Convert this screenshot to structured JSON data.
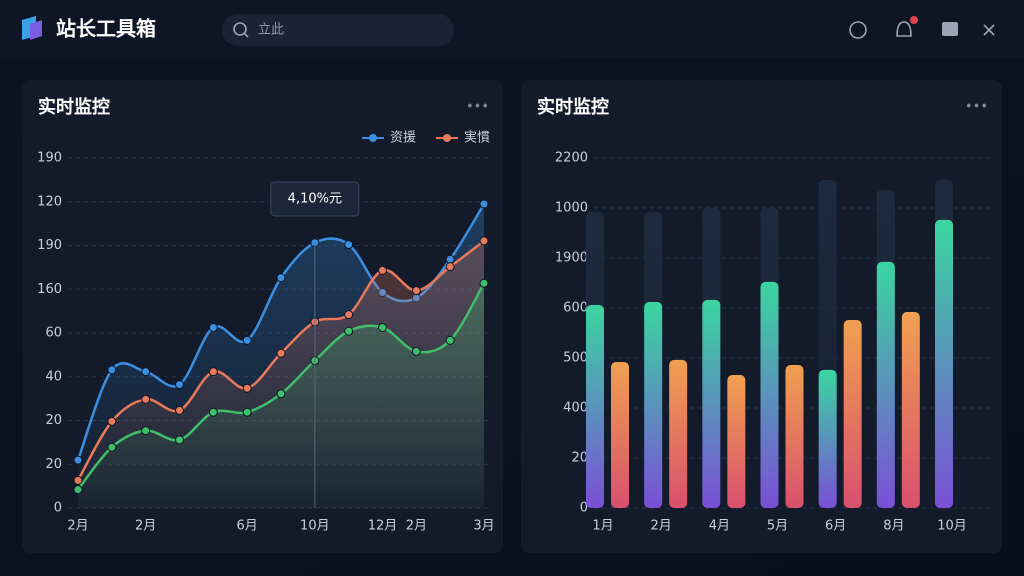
{
  "header": {
    "title": "站长工具箱",
    "search_placeholder": "立此"
  },
  "chart_data": [
    {
      "type": "line",
      "title": "实时监控",
      "categories": [
        "2月",
        null,
        "2月",
        null,
        null,
        "6月",
        null,
        "10月",
        null,
        "12月",
        "2月",
        null,
        "3月"
      ],
      "ylim": [
        0,
        190
      ],
      "y_axis_labels": [
        "0",
        "20",
        "20",
        "40",
        "60",
        "160",
        "190",
        "120",
        "190"
      ],
      "grid": true,
      "legend": "top-right",
      "annotation": "4,10%元",
      "annotation_index": 7,
      "series": [
        {
          "name": "资援",
          "color": "#3b8fe0",
          "values": [
            26,
            75,
            74,
            67,
            98,
            91,
            125,
            144,
            143,
            117,
            114,
            135,
            165
          ]
        },
        {
          "name": "実慣",
          "color": "#e8795a",
          "values": [
            15,
            47,
            59,
            53,
            74,
            65,
            84,
            101,
            105,
            129,
            118,
            131,
            145
          ]
        },
        {
          "color": "#3fbf6a",
          "values": [
            10,
            33,
            42,
            37,
            52,
            52,
            62,
            80,
            96,
            98,
            85,
            91,
            122
          ]
        }
      ]
    },
    {
      "type": "bar",
      "title": "实时监控",
      "categories": [
        "1月",
        "2月",
        "4月",
        "5月",
        "6月",
        "8月",
        "10月"
      ],
      "ylim": [
        0,
        2200
      ],
      "y_axis_labels": [
        "0",
        "20",
        "400",
        "500",
        "600",
        "1900",
        "1000",
        "2200"
      ],
      "grid": true,
      "series": [
        {
          "color": "#1e2a3e",
          "values": [
            1861,
            1861,
            1886,
            1886,
            2062,
            1999,
            2062
          ]
        },
        {
          "color": "#3ad6a0",
          "color_bottom": "#7a4fd6",
          "values": [
            1276,
            1295,
            1308,
            1421,
            868,
            1547,
            1811
          ]
        },
        {
          "color": "#f0a050",
          "color_bottom": "#d9506e",
          "values": [
            918,
            931,
            836,
            899,
            1182,
            1232,
            null
          ]
        }
      ]
    }
  ]
}
